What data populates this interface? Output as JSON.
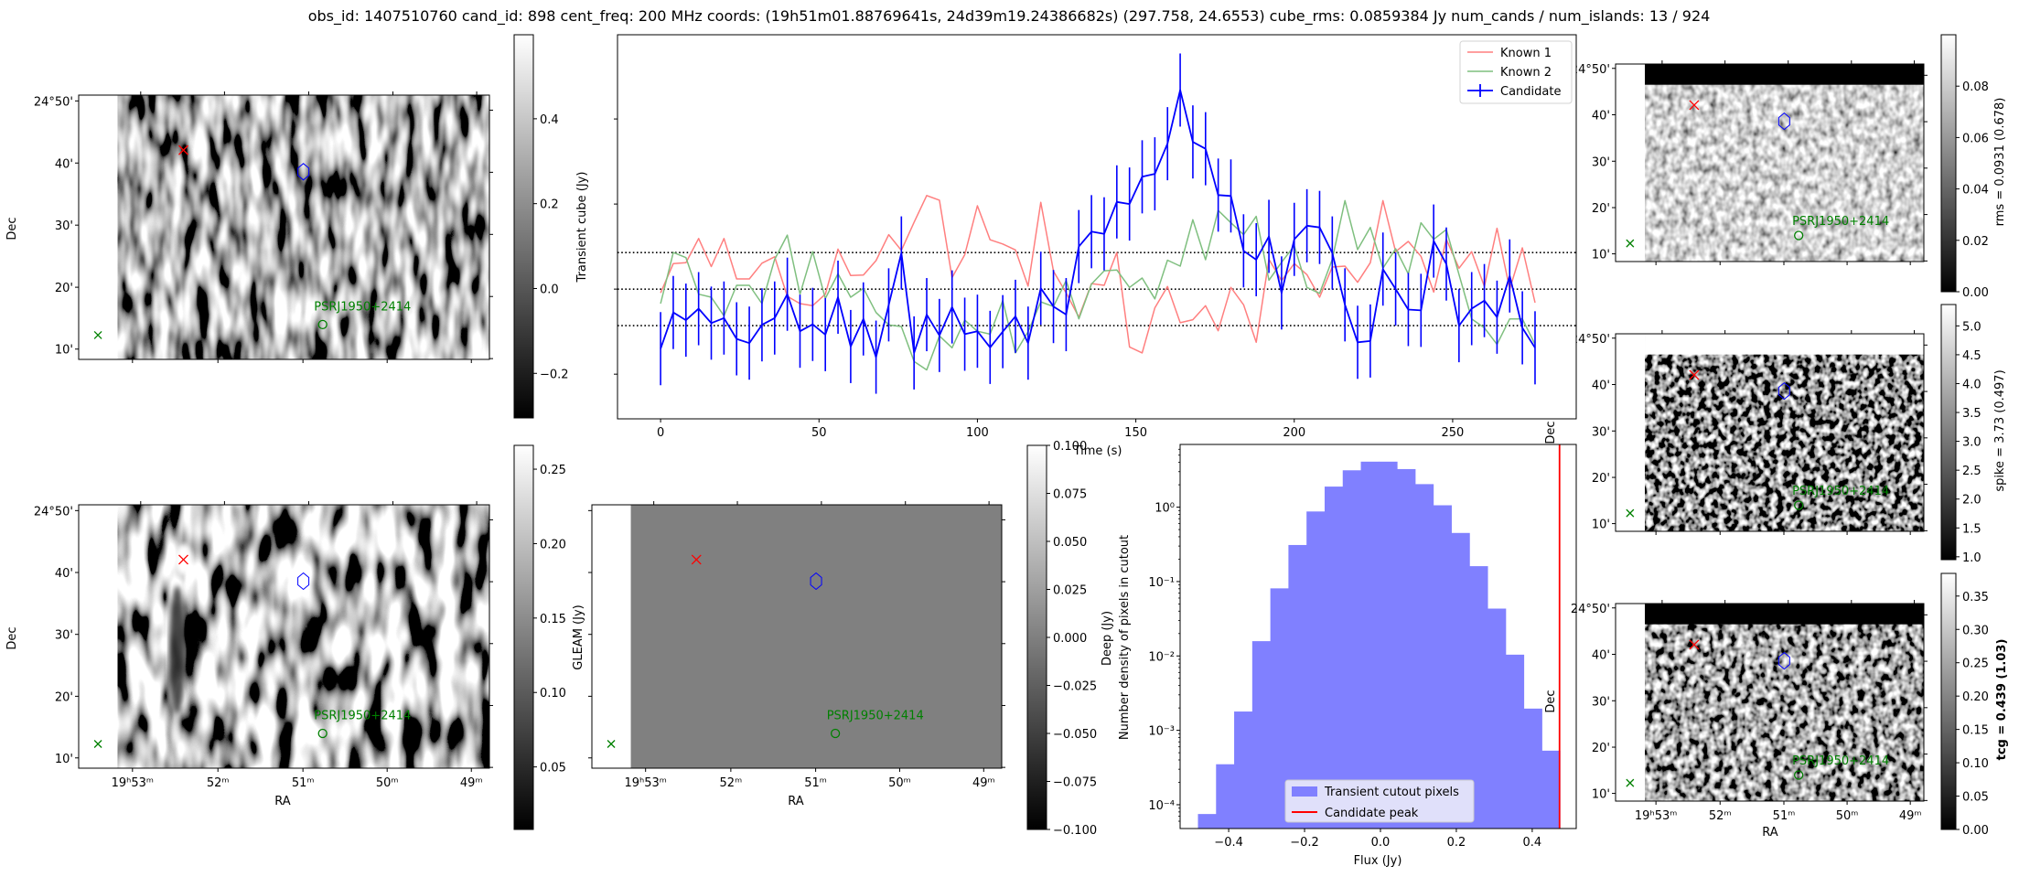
{
  "title": "obs_id: 1407510760 cand_id: 898 cent_freq: 200 MHz coords: (19h51m01.88769641s, 24d39m19.24386682s) (297.758, 24.6553) cube_rms: 0.0859384 Jy num_cands / num_islands: 13 / 924",
  "common": {
    "dec_label": "Dec",
    "ra_label": "RA",
    "dec_ticks": [
      "24°50'",
      "40'",
      "30'",
      "20'",
      "10'"
    ],
    "ra_ticks": [
      "19ʰ53ᵐ",
      "52ᵐ",
      "51ᵐ",
      "50ᵐ",
      "49ᵐ"
    ],
    "source_label": "PSRJ1950+2414",
    "colors": {
      "candidate_marker": "#ff0000",
      "source_marker": "#008000",
      "ellipse": "#0000ff"
    }
  },
  "images": {
    "transient": {
      "colorbar": {
        "label": "Transient cube (Jy)",
        "range": [
          -0.305,
          0.598
        ],
        "ticks": [
          -0.2,
          0.0,
          0.2,
          0.4
        ],
        "tick_labels": [
          "−0.2",
          "0.0",
          "0.2",
          "0.4"
        ]
      }
    },
    "deep": {
      "colorbar": {
        "label": "GLEAM (Jy)",
        "range": [
          0.008,
          0.266
        ],
        "ticks": [
          0.05,
          0.1,
          0.15,
          0.2,
          0.25
        ],
        "tick_labels": [
          "0.05",
          "0.10",
          "0.15",
          "0.20",
          "0.25"
        ]
      }
    },
    "gleam": {
      "colorbar": {
        "label": "Deep (Jy)",
        "range": [
          -0.1,
          0.1
        ],
        "ticks": [
          -0.1,
          -0.075,
          -0.05,
          -0.025,
          0.0,
          0.025,
          0.05,
          0.075,
          0.1
        ],
        "tick_labels": [
          "−0.100",
          "−0.075",
          "−0.050",
          "−0.025",
          "0.000",
          "0.025",
          "0.050",
          "0.075",
          "0.100"
        ]
      }
    },
    "rms": {
      "colorbar": {
        "label": "rms = 0.0931 (0.678)",
        "range": [
          0.0,
          0.1
        ],
        "ticks": [
          0.0,
          0.02,
          0.04,
          0.06,
          0.08
        ],
        "tick_labels": [
          "0.00",
          "0.02",
          "0.04",
          "0.06",
          "0.08"
        ]
      }
    },
    "spike": {
      "colorbar": {
        "label": "spike = 3.73 (0.497)",
        "range": [
          0.95,
          5.37
        ],
        "ticks": [
          1.0,
          1.5,
          2.0,
          2.5,
          3.0,
          3.5,
          4.0,
          4.5,
          5.0
        ],
        "tick_labels": [
          "1.0",
          "1.5",
          "2.0",
          "2.5",
          "3.0",
          "3.5",
          "4.0",
          "4.5",
          "5.0"
        ]
      }
    },
    "tcg": {
      "colorbar": {
        "label": "tcg = 0.439 (1.03)",
        "range": [
          0.0,
          0.384
        ],
        "ticks": [
          0.0,
          0.05,
          0.1,
          0.15,
          0.2,
          0.25,
          0.3,
          0.35
        ],
        "tick_labels": [
          "0.00",
          "0.05",
          "0.10",
          "0.15",
          "0.20",
          "0.25",
          "0.30",
          "0.35"
        ]
      }
    }
  },
  "chart_data": [
    {
      "type": "line",
      "title": "",
      "xlabel": "Time (s)",
      "ylabel": "Transient cube (Jy)",
      "xlim": [
        -13.6,
        289
      ],
      "ylim": [
        -0.305,
        0.598
      ],
      "xticks": [
        0,
        50,
        100,
        150,
        200,
        250
      ],
      "xtick_labels": [
        "0",
        "50",
        "100",
        "150",
        "200",
        "250"
      ],
      "yticks": [
        -0.2,
        0.0,
        0.2,
        0.4
      ],
      "hlines": [
        0.0859384,
        0.0,
        -0.0859384
      ],
      "legend_position": "top-right",
      "x": [
        0,
        4,
        8,
        12,
        16,
        20,
        24,
        28,
        32,
        36,
        40,
        44,
        48,
        52,
        56,
        60,
        64,
        68,
        72,
        76,
        80,
        84,
        88,
        92,
        96,
        100,
        104,
        108,
        112,
        116,
        120,
        124,
        128,
        132,
        136,
        140,
        144,
        148,
        152,
        156,
        160,
        164,
        168,
        172,
        176,
        180,
        184,
        188,
        192,
        196,
        200,
        204,
        208,
        212,
        216,
        220,
        224,
        228,
        232,
        236,
        240,
        244,
        248,
        252,
        256,
        260,
        264,
        268,
        272,
        276
      ],
      "series": [
        {
          "name": "Known 1",
          "color": "#ff7f7f",
          "values": [
            -0.009,
            0.06,
            0.062,
            0.119,
            0.053,
            0.119,
            0.024,
            0.024,
            0.061,
            0.076,
            -0.017,
            -0.034,
            -0.039,
            -0.012,
            0.094,
            0.032,
            0.033,
            0.067,
            0.128,
            0.091,
            0.157,
            0.22,
            0.209,
            0.027,
            0.081,
            0.196,
            0.116,
            0.106,
            0.092,
            0.007,
            0.204,
            0.042,
            -0.009,
            -0.066,
            0.013,
            0.009,
            0.086,
            -0.136,
            -0.15,
            -0.044,
            0.006,
            -0.079,
            -0.072,
            -0.039,
            -0.098,
            0.004,
            -0.037,
            -0.125,
            0.07,
            0.02,
            0.06,
            0.034,
            -0.019,
            0.052,
            0.054,
            0.016,
            0.062,
            0.208,
            0.088,
            0.112,
            0.077,
            -0.007,
            0.117,
            0.049,
            0.088,
            0.006,
            0.143,
            0.0,
            0.097,
            -0.032
          ]
        },
        {
          "name": "Known 2",
          "color": "#7fbf7f",
          "values": [
            -0.034,
            0.086,
            0.074,
            -0.012,
            -0.019,
            -0.063,
            0.009,
            0.009,
            -0.034,
            0.07,
            0.127,
            -0.012,
            0.088,
            -0.022,
            0.036,
            -0.019,
            0.002,
            -0.055,
            -0.084,
            -0.088,
            -0.17,
            -0.19,
            -0.11,
            -0.138,
            -0.073,
            -0.099,
            -0.106,
            -0.027,
            -0.15,
            -0.1,
            -0.03,
            -0.041,
            0.02,
            -0.07,
            0.012,
            0.043,
            0.045,
            0.004,
            0.026,
            -0.023,
            0.068,
            0.054,
            0.163,
            0.069,
            0.185,
            0.156,
            0.128,
            0.171,
            0.021,
            0.063,
            0.102,
            0.004,
            -0.01,
            0.07,
            0.208,
            0.093,
            0.145,
            0.049,
            0.095,
            0.036,
            0.156,
            0.117,
            0.14,
            0.034,
            -0.07,
            -0.091,
            -0.13,
            -0.07,
            -0.07,
            -0.13
          ]
        },
        {
          "name": "Candidate",
          "color": "#0000ff",
          "yerr": 0.086,
          "values": [
            -0.14,
            -0.055,
            -0.073,
            -0.046,
            -0.08,
            -0.068,
            -0.117,
            -0.127,
            -0.084,
            -0.068,
            -0.012,
            -0.099,
            -0.083,
            -0.107,
            -0.019,
            -0.135,
            -0.07,
            -0.16,
            -0.037,
            0.085,
            -0.15,
            -0.06,
            -0.109,
            -0.042,
            -0.106,
            -0.099,
            -0.137,
            -0.1,
            -0.064,
            -0.127,
            0.002,
            -0.041,
            -0.06,
            0.1,
            0.135,
            0.13,
            0.205,
            0.2,
            0.264,
            0.271,
            0.342,
            0.468,
            0.346,
            0.33,
            0.221,
            0.219,
            0.09,
            0.069,
            0.124,
            -0.009,
            0.117,
            0.149,
            0.145,
            0.085,
            -0.037,
            -0.125,
            -0.122,
            0.047,
            0.0,
            -0.048,
            -0.05,
            0.113,
            0.059,
            -0.086,
            -0.046,
            -0.027,
            -0.066,
            0.031,
            -0.091,
            -0.138
          ]
        }
      ]
    },
    {
      "type": "bar",
      "title": "",
      "xlabel": "Flux (Jy)",
      "ylabel": "Number density of pixels in cutout",
      "yscale": "log",
      "xlim": [
        -0.528,
        0.516
      ],
      "ylim_log10": [
        -4.32,
        0.843
      ],
      "xticks": [
        -0.4,
        -0.2,
        0.0,
        0.2,
        0.4
      ],
      "xtick_labels": [
        "−0.4",
        "−0.2",
        "0.0",
        "0.2",
        "0.4"
      ],
      "yticks_log10": [
        -4,
        -3,
        -2,
        -1,
        0
      ],
      "ytick_labels": [
        "10⁻⁴",
        "10⁻³",
        "10⁻²",
        "10⁻¹",
        "10⁰"
      ],
      "legend_position": "bottom-center",
      "bin_start": -0.481,
      "bin_width": 0.0477,
      "series": [
        {
          "name": "Transient cutout pixels",
          "color": "#8080ff",
          "values": [
            7.5e-05,
            0.00035,
            0.00179,
            0.0158,
            0.081,
            0.31,
            0.875,
            1.89,
            3.13,
            4.09,
            4.09,
            3.25,
            2.04,
            1.06,
            0.45,
            0.161,
            0.0433,
            0.0104,
            0.00196,
            0.000533
          ]
        },
        {
          "name": "Candidate peak",
          "color": "#ff0000",
          "x": 0.472
        }
      ]
    }
  ]
}
